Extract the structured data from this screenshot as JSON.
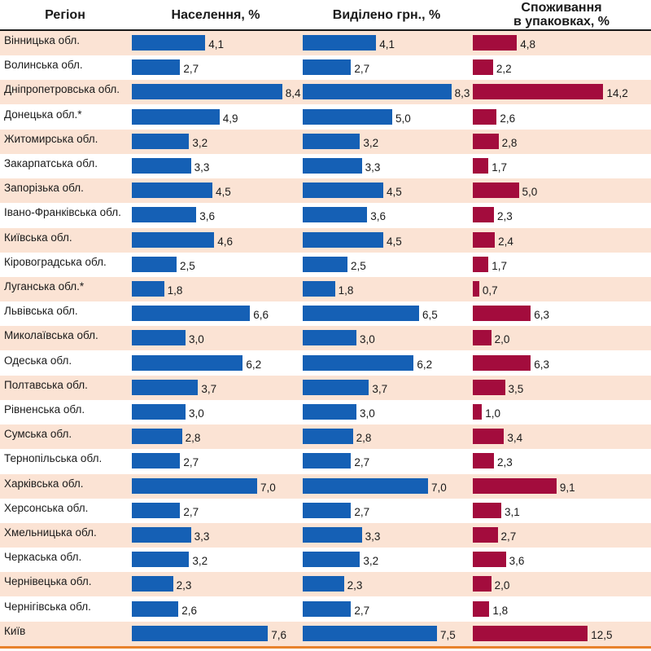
{
  "colors": {
    "blue": "#1560b5",
    "crimson": "#a30c3d",
    "stripe": "#fbe3d4",
    "accent": "#e8822c"
  },
  "chart_data": {
    "type": "bar",
    "headers": {
      "region": "Регіон",
      "population": "Населення, %",
      "allocated": "Виділено грн., %",
      "consumption_line1": "Споживання",
      "consumption_line2": "в упаковках, %"
    },
    "categories": [
      "Вінницька обл.",
      "Волинська обл.",
      "Дніпропетровська обл.",
      "Донецька обл.*",
      "Житомирська обл.",
      "Закарпатська обл.",
      "Запорізька обл.",
      "Івано-Франківська обл.",
      "Київська обл.",
      "Кіровоградська обл.",
      "Луганська обл.*",
      "Львівська обл.",
      "Миколаївська обл.",
      "Одеська обл.",
      "Полтавська обл.",
      "Рівненська обл.",
      "Сумська обл.",
      "Тернопільська обл.",
      "Харківська обл.",
      "Херсонська обл.",
      "Хмельницька обл.",
      "Черкаська обл.",
      "Чернівецька обл.",
      "Чернігівська обл.",
      "Київ"
    ],
    "series": [
      {
        "name": "Населення, %",
        "values": [
          4.1,
          2.7,
          8.4,
          4.9,
          3.2,
          3.3,
          4.5,
          3.6,
          4.6,
          2.5,
          1.8,
          6.6,
          3.0,
          6.2,
          3.7,
          3.0,
          2.8,
          2.7,
          7.0,
          2.7,
          3.3,
          3.2,
          2.3,
          2.6,
          7.6
        ],
        "labels": [
          "4,1",
          "2,7",
          "8,4",
          "4,9",
          "3,2",
          "3,3",
          "4,5",
          "3,6",
          "4,6",
          "2,5",
          "1,8",
          "6,6",
          "3,0",
          "6,2",
          "3,7",
          "3,0",
          "2,8",
          "2,7",
          "7,0",
          "2,7",
          "3,3",
          "3,2",
          "2,3",
          "2,6",
          "7,6"
        ]
      },
      {
        "name": "Виділено грн., %",
        "values": [
          4.1,
          2.7,
          8.3,
          5.0,
          3.2,
          3.3,
          4.5,
          3.6,
          4.5,
          2.5,
          1.8,
          6.5,
          3.0,
          6.2,
          3.7,
          3.0,
          2.8,
          2.7,
          7.0,
          2.7,
          3.3,
          3.2,
          2.3,
          2.7,
          7.5
        ],
        "labels": [
          "4,1",
          "2,7",
          "8,3",
          "5,0",
          "3,2",
          "3,3",
          "4,5",
          "3,6",
          "4,5",
          "2,5",
          "1,8",
          "6,5",
          "3,0",
          "6,2",
          "3,7",
          "3,0",
          "2,8",
          "2,7",
          "7,0",
          "2,7",
          "3,3",
          "3,2",
          "2,3",
          "2,7",
          "7,5"
        ]
      },
      {
        "name": "Споживання в упаковках, %",
        "values": [
          4.8,
          2.2,
          14.2,
          2.6,
          2.8,
          1.7,
          5.0,
          2.3,
          2.4,
          1.7,
          0.7,
          6.3,
          2.0,
          6.3,
          3.5,
          1.0,
          3.4,
          2.3,
          9.1,
          3.1,
          2.7,
          3.6,
          2.0,
          1.8,
          12.5
        ],
        "labels": [
          "4,8",
          "2,2",
          "14,2",
          "2,6",
          "2,8",
          "1,7",
          "5,0",
          "2,3",
          "2,4",
          "1,7",
          "0,7",
          "6,3",
          "2,0",
          "6,3",
          "3,5",
          "1,0",
          "3,4",
          "2,3",
          "9,1",
          "3,1",
          "2,7",
          "3,6",
          "2,0",
          "1,8",
          "12,5"
        ]
      }
    ]
  }
}
